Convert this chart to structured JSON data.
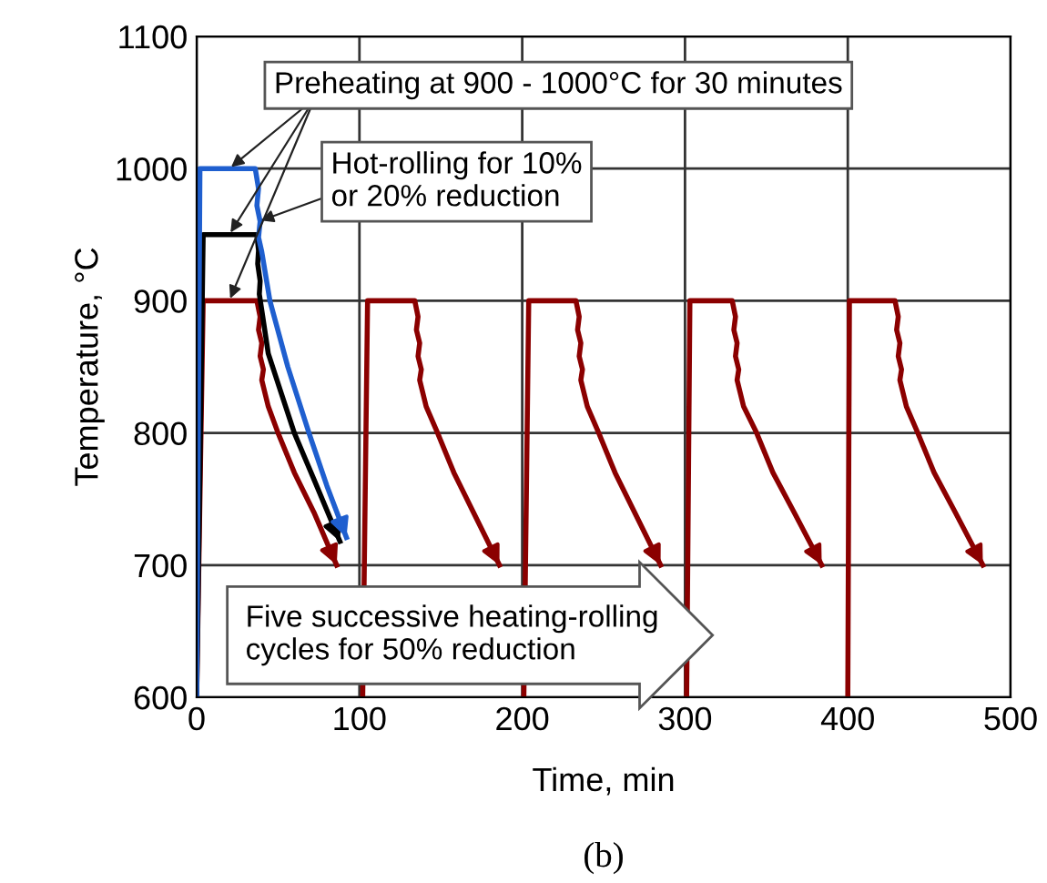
{
  "chart_data": {
    "type": "line",
    "xlabel": "Time, min",
    "ylabel": "Temperature, °C",
    "subtitle": "(b)",
    "xlim": [
      0,
      500
    ],
    "ylim": [
      600,
      1100
    ],
    "xticks": [
      0,
      100,
      200,
      300,
      400,
      500
    ],
    "yticks": [
      600,
      700,
      800,
      900,
      1000,
      1100
    ],
    "grid": true,
    "legend": false,
    "marker": "none",
    "line_style": "solid",
    "series": [
      {
        "color": "#8b0000",
        "x": [
          0,
          4,
          37,
          39,
          38,
          40,
          39,
          41,
          40,
          44,
          50,
          60,
          72,
          86,
          null,
          102,
          105,
          134,
          136,
          135,
          137,
          136,
          138,
          137,
          141,
          148,
          158,
          170,
          186,
          null,
          201,
          204,
          233,
          235,
          234,
          236,
          235,
          237,
          236,
          240,
          247,
          257,
          269,
          285,
          null,
          301,
          303,
          329,
          331,
          330,
          332,
          331,
          333,
          332,
          336,
          344,
          354,
          367,
          384,
          null,
          400,
          401,
          429,
          431,
          430,
          432,
          431,
          433,
          432,
          436,
          443,
          453,
          466,
          483
        ],
        "values": [
          600,
          900,
          900,
          888,
          878,
          868,
          858,
          848,
          840,
          820,
          800,
          770,
          740,
          700,
          null,
          600,
          900,
          900,
          888,
          878,
          868,
          858,
          848,
          840,
          820,
          800,
          770,
          740,
          700,
          null,
          600,
          900,
          900,
          888,
          878,
          868,
          858,
          848,
          840,
          820,
          800,
          770,
          740,
          700,
          null,
          600,
          900,
          900,
          888,
          878,
          868,
          858,
          848,
          840,
          820,
          800,
          770,
          740,
          700,
          null,
          600,
          900,
          900,
          888,
          878,
          868,
          858,
          848,
          840,
          820,
          800,
          770,
          740,
          700
        ]
      },
      {
        "color": "#000000",
        "x": [
          0,
          4,
          37,
          38,
          37.5,
          39,
          38.5,
          40,
          44,
          52,
          60,
          72,
          88
        ],
        "values": [
          600,
          950,
          950,
          938,
          928,
          915,
          905,
          893,
          860,
          830,
          800,
          765,
          718
        ]
      },
      {
        "color": "#1f5fcf",
        "x": [
          0,
          2,
          36,
          38,
          37,
          39,
          38,
          40,
          45,
          56,
          69,
          80,
          92
        ],
        "values": [
          600,
          1000,
          1000,
          985,
          972,
          960,
          948,
          937,
          900,
          850,
          800,
          760,
          721
        ]
      }
    ],
    "annotations": [
      {
        "text": "Preheating at 900 - 1000°C for 30 minutes",
        "x": 20,
        "y": 900
      },
      {
        "text": "Hot-rolling for 10%\nor 20% reduction",
        "x": 38,
        "y": 960
      },
      "Five successive heating-rolling\ncycles for 50% reduction"
    ]
  }
}
